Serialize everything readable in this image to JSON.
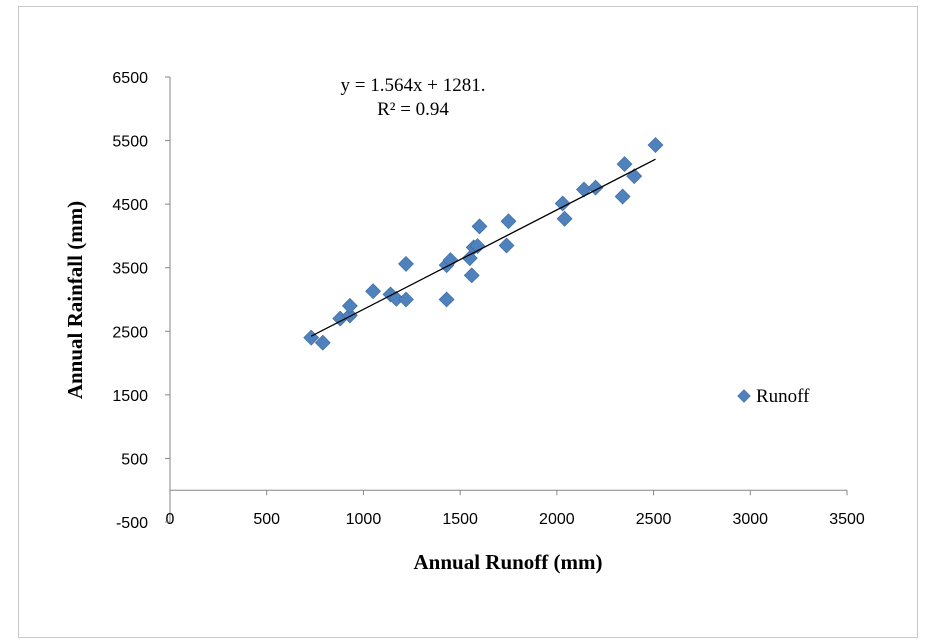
{
  "chart_data": {
    "type": "scatter",
    "xlabel": "Annual Runoff (mm)",
    "ylabel": "Annual Rainfall (mm)",
    "xlim": [
      0,
      3500
    ],
    "ylim": [
      -500,
      6500
    ],
    "x_ticks": [
      0,
      500,
      1000,
      1500,
      2000,
      2500,
      3000,
      3500
    ],
    "y_ticks": [
      -500,
      500,
      1500,
      2500,
      3500,
      4500,
      5500,
      6500
    ],
    "grid": false,
    "legend_placement": "right",
    "series": [
      {
        "name": "Runoff",
        "color": "#4f81bd",
        "marker": "diamond",
        "points": [
          [
            730,
            2400
          ],
          [
            790,
            2320
          ],
          [
            880,
            2700
          ],
          [
            930,
            2750
          ],
          [
            930,
            2900
          ],
          [
            1050,
            3130
          ],
          [
            1140,
            3080
          ],
          [
            1170,
            3010
          ],
          [
            1220,
            3000
          ],
          [
            1220,
            3560
          ],
          [
            1430,
            3000
          ],
          [
            1430,
            3540
          ],
          [
            1450,
            3620
          ],
          [
            1550,
            3650
          ],
          [
            1560,
            3380
          ],
          [
            1570,
            3820
          ],
          [
            1590,
            3840
          ],
          [
            1600,
            4150
          ],
          [
            1740,
            3850
          ],
          [
            1750,
            4230
          ],
          [
            2030,
            4510
          ],
          [
            2040,
            4270
          ],
          [
            2140,
            4730
          ],
          [
            2200,
            4760
          ],
          [
            2340,
            4620
          ],
          [
            2350,
            5130
          ],
          [
            2400,
            4940
          ],
          [
            2510,
            5430
          ]
        ]
      }
    ],
    "trendline": {
      "type": "linear",
      "slope": 1.564,
      "intercept": 1281,
      "x_range": [
        730,
        2510
      ],
      "color": "#000000"
    },
    "annotations": {
      "equation": "y = 1.564x + 1281.",
      "r_squared": "R² = 0.94"
    }
  }
}
